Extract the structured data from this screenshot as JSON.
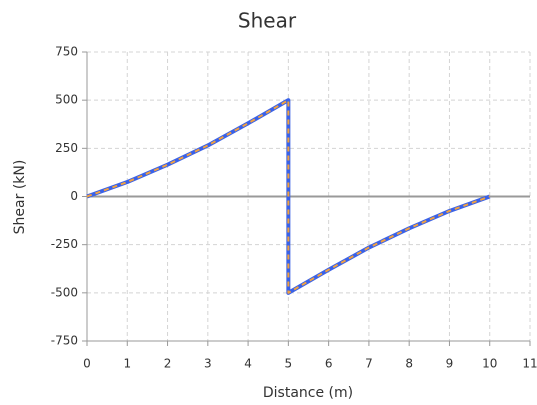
{
  "chart_data": {
    "type": "line",
    "title": "Shear",
    "xlabel": "Distance  (m)",
    "ylabel": "Shear  (kN)",
    "x": [
      0,
      1,
      2,
      3,
      4,
      5,
      5,
      6,
      7,
      8,
      9,
      10
    ],
    "series": [
      {
        "color": "#3a62e8",
        "values": [
          0,
          75,
          165,
          265,
          380,
          500,
          -500,
          -380,
          -265,
          -165,
          -75,
          0
        ]
      },
      {
        "color": "#f0a040",
        "dashed": true,
        "values": [
          0,
          75,
          165,
          265,
          380,
          500,
          -500,
          -380,
          -265,
          -165,
          -75,
          0
        ]
      }
    ],
    "xlim": [
      0,
      11
    ],
    "xticks": [
      0,
      1,
      2,
      3,
      4,
      5,
      6,
      7,
      8,
      9,
      10,
      11
    ],
    "ylim": [
      -750,
      750
    ],
    "yticks": [
      -750,
      -500,
      -250,
      0,
      250,
      500,
      750
    ],
    "grid": true,
    "zero_line": true
  }
}
